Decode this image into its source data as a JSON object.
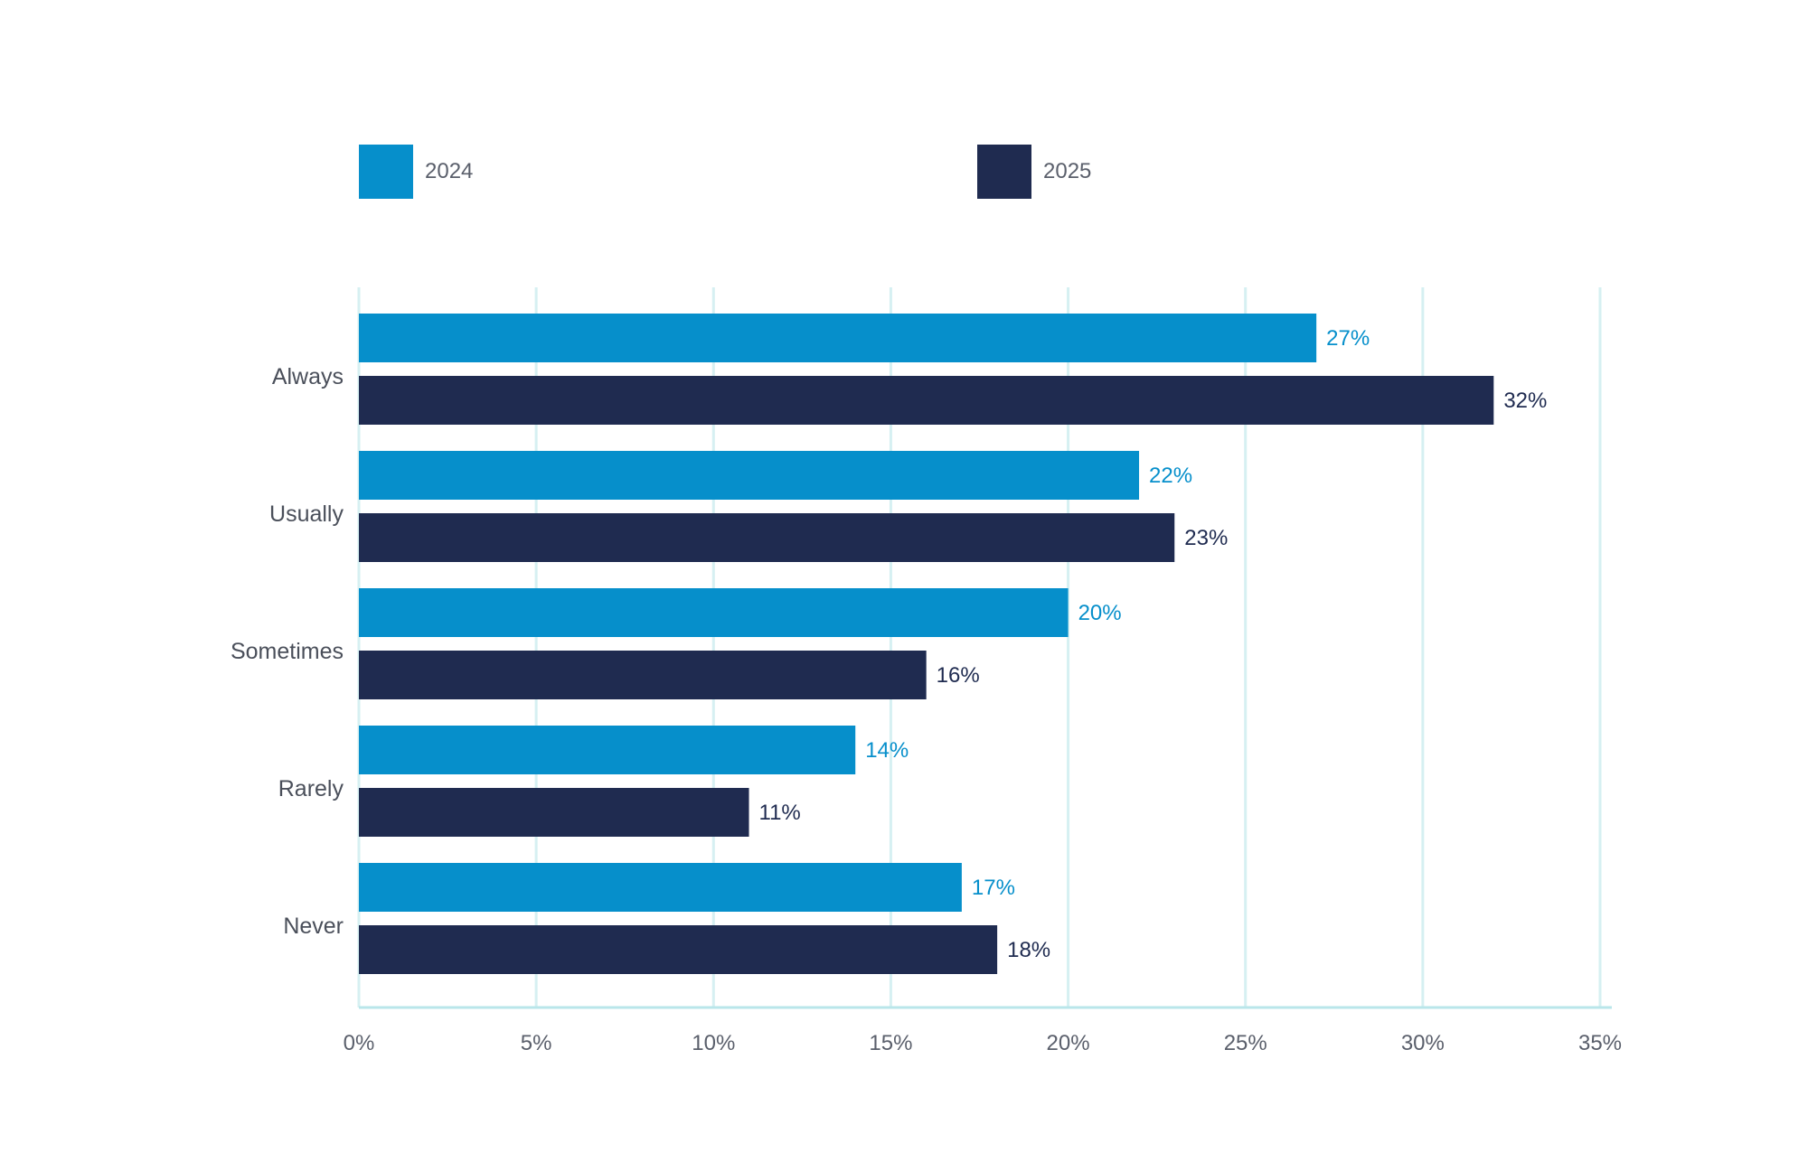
{
  "chart_data": {
    "type": "bar",
    "orientation": "horizontal",
    "categories": [
      "Always",
      "Usually",
      "Sometimes",
      "Rarely",
      "Never"
    ],
    "series": [
      {
        "name": "2024",
        "color": "#068fcb",
        "values": [
          27,
          22,
          20,
          14,
          17
        ],
        "labels": [
          "27%",
          "22%",
          "20%",
          "14%",
          "17%"
        ]
      },
      {
        "name": "2025",
        "color": "#1f2b50",
        "values": [
          32,
          23,
          16,
          11,
          18
        ],
        "labels": [
          "32%",
          "23%",
          "16%",
          "11%",
          "18%"
        ]
      }
    ],
    "xlim": [
      0,
      35
    ],
    "xticks": [
      0,
      5,
      10,
      15,
      20,
      25,
      30,
      35
    ],
    "xtick_labels": [
      "0%",
      "5%",
      "10%",
      "15%",
      "20%",
      "25%",
      "30%",
      "35%"
    ],
    "grid": "vertical",
    "grid_color": "#d6f0f2",
    "legend_placement": "top",
    "title": "",
    "xlabel": "",
    "ylabel": ""
  }
}
